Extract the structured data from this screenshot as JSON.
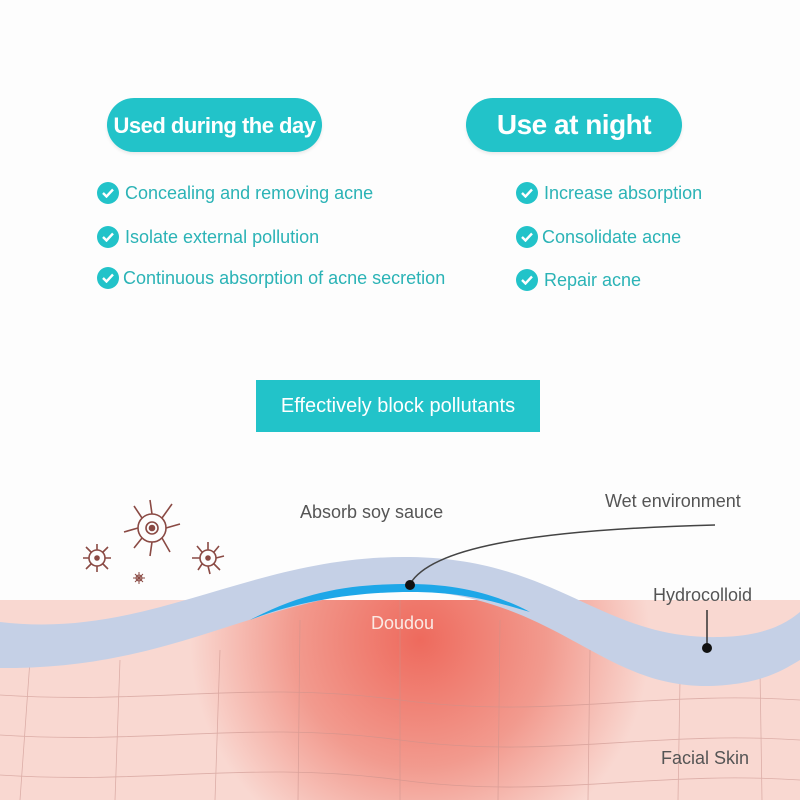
{
  "day": {
    "title": "Used during the day",
    "items": [
      "Concealing and removing acne",
      "Isolate external pollution",
      "Continuous absorption of acne secretion"
    ]
  },
  "night": {
    "title": "Use at night",
    "items": [
      "Increase absorption",
      "Consolidate acne",
      "Repair acne"
    ]
  },
  "banner": "Effectively block pollutants",
  "diagram": {
    "absorb": "Absorb soy sauce",
    "wet": "Wet environment",
    "hydrocolloid": "Hydrocolloid",
    "doudou": "Doudou",
    "skin": "Facial Skin"
  },
  "colors": {
    "accent": "#22c3c9",
    "text": "#2bb3b6",
    "hydrocolloid": "#c5d0e6",
    "wet_layer": "#1ea7e8",
    "skin": "#f7d3cc",
    "acne": "#ee6a5d"
  },
  "icons": {
    "check": "check-circle-icon",
    "germs": "bacteria-icon"
  }
}
